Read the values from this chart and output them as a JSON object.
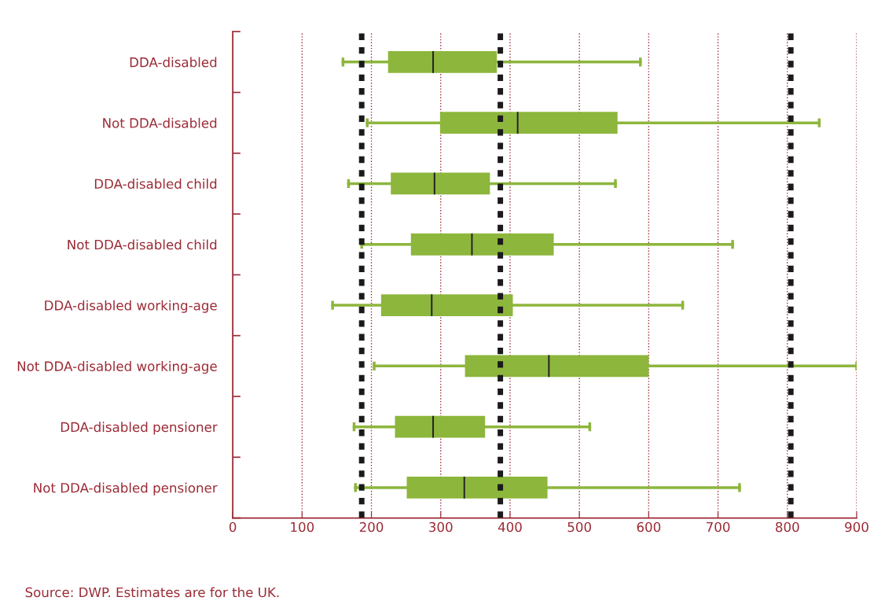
{
  "chart_data": {
    "type": "box",
    "orientation": "horizontal",
    "categories": [
      "DDA-disabled",
      "Not DDA-disabled",
      "DDA-disabled child",
      "Not DDA-disabled child",
      "DDA-disabled working-age",
      "Not DDA-disabled working-age",
      "DDA-disabled pensioner",
      "Not DDA-disabled pensioner"
    ],
    "boxes": [
      {
        "low": 159,
        "q1": 224,
        "median": 289,
        "q3": 381,
        "high": 588
      },
      {
        "low": 194,
        "q1": 299,
        "median": 411,
        "q3": 555,
        "high": 846
      },
      {
        "low": 167,
        "q1": 228,
        "median": 291,
        "q3": 371,
        "high": 552
      },
      {
        "low": 186,
        "q1": 257,
        "median": 345,
        "q3": 463,
        "high": 721
      },
      {
        "low": 144,
        "q1": 214,
        "median": 287,
        "q3": 404,
        "high": 649
      },
      {
        "low": 204,
        "q1": 335,
        "median": 456,
        "q3": 600,
        "high": 900
      },
      {
        "low": 175,
        "q1": 234,
        "median": 289,
        "q3": 364,
        "high": 515
      },
      {
        "low": 177,
        "q1": 251,
        "median": 334,
        "q3": 454,
        "high": 731
      }
    ],
    "color": "#8db63c",
    "xlim": [
      0,
      900
    ],
    "xticks": [
      0,
      100,
      200,
      300,
      400,
      500,
      600,
      700,
      800,
      900
    ],
    "grid": "x",
    "ref_lines": [
      {
        "axis": "x",
        "value": 186,
        "color": "#1a1a1a",
        "line_style": "dashed"
      },
      {
        "axis": "x",
        "value": 386,
        "color": "#1a1a1a",
        "line_style": "dashed"
      },
      {
        "axis": "x",
        "value": 805,
        "color": "#1a1a1a",
        "line_style": "dashed"
      }
    ],
    "annotations": [
      "Source: DWP. Estimates are for the UK."
    ]
  }
}
